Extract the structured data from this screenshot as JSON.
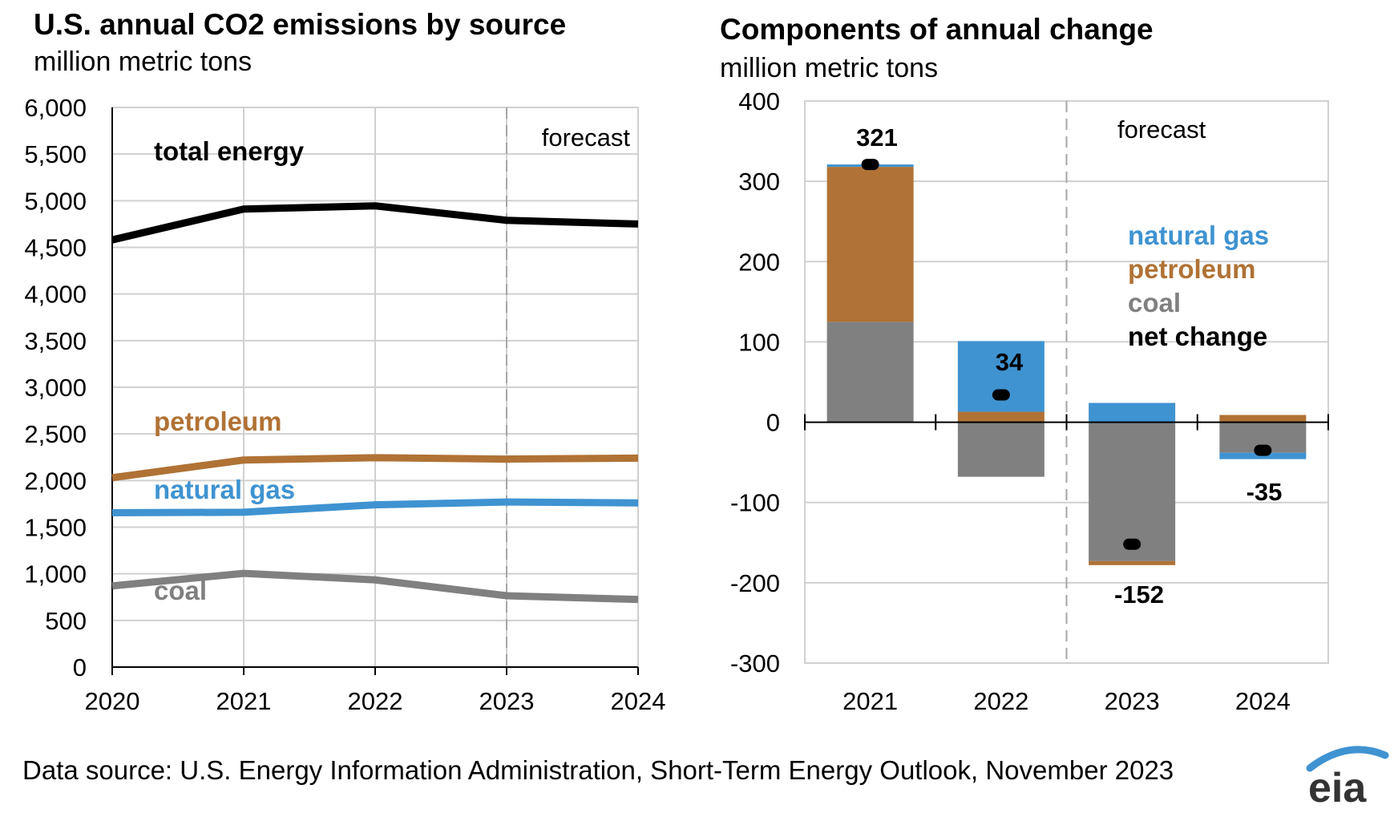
{
  "footer": {
    "source": "Data source: U.S. Energy Information Administration, Short-Term Energy Outlook, November 2023",
    "logo_text": "eia"
  },
  "colors": {
    "total_energy": "#000000",
    "petroleum": "#b07235",
    "natural_gas": "#3f93d1",
    "coal": "#808080",
    "grid": "#d0d0d0",
    "forecast_line": "#a6a6a6"
  },
  "chart_data": [
    {
      "type": "line",
      "title": "U.S. annual CO2 emissions by source",
      "subtitle": "million metric tons",
      "x": [
        2020,
        2021,
        2022,
        2023,
        2024
      ],
      "x_ticks": [
        "2020",
        "2021",
        "2022",
        "2023",
        "2024"
      ],
      "ylim": [
        0,
        6000
      ],
      "y_ticks": [
        "0",
        "500",
        "1,000",
        "1,500",
        "2,000",
        "2,500",
        "3,000",
        "3,500",
        "4,000",
        "4,500",
        "5,000",
        "5,500",
        "6,000"
      ],
      "grid": true,
      "forecast_label": "forecast",
      "forecast_start": 2023,
      "series": [
        {
          "key": "total_energy",
          "name": "total energy",
          "values": [
            4580,
            4910,
            4945,
            4790,
            4750
          ]
        },
        {
          "key": "petroleum",
          "name": "petroleum",
          "values": [
            2030,
            2220,
            2245,
            2230,
            2240
          ]
        },
        {
          "key": "natural_gas",
          "name": "natural gas",
          "values": [
            1655,
            1660,
            1740,
            1770,
            1760
          ]
        },
        {
          "key": "coal",
          "name": "coal",
          "values": [
            870,
            1005,
            935,
            765,
            725
          ]
        }
      ]
    },
    {
      "type": "bar",
      "stacked": true,
      "title": "Components of annual change",
      "subtitle": "million metric tons",
      "categories": [
        "2021",
        "2022",
        "2023",
        "2024"
      ],
      "ylim": [
        -300,
        400
      ],
      "y_ticks": [
        "-300",
        "-200",
        "-100",
        "0",
        "100",
        "200",
        "300",
        "400"
      ],
      "grid": true,
      "forecast_label": "forecast",
      "forecast_start": "2023",
      "series": [
        {
          "key": "coal",
          "name": "coal",
          "values": [
            125,
            -68,
            -173,
            -38
          ]
        },
        {
          "key": "petroleum",
          "name": "petroleum",
          "values": [
            193,
            13,
            -5,
            9
          ]
        },
        {
          "key": "natural_gas",
          "name": "natural gas",
          "values": [
            3,
            88,
            24,
            -8
          ]
        }
      ],
      "net_change": {
        "name": "net change",
        "values": [
          321,
          34,
          -152,
          -35
        ],
        "labels": [
          "321",
          "34",
          "-152",
          "-35"
        ]
      },
      "legend": [
        "natural gas",
        "petroleum",
        "coal",
        "net change"
      ],
      "legend_placement": "right"
    }
  ]
}
